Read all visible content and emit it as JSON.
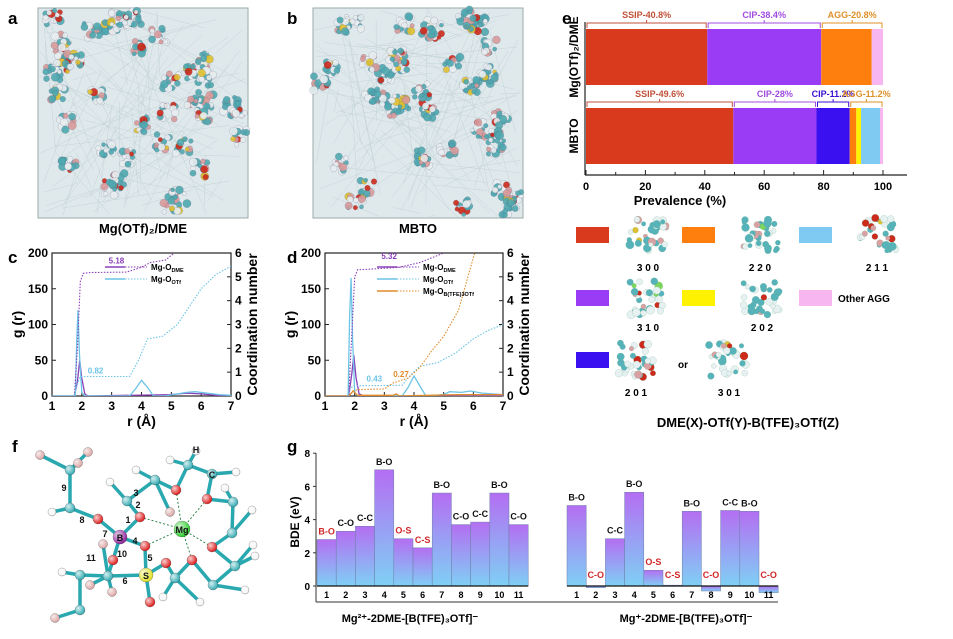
{
  "panels": {
    "a": {
      "label": "a",
      "caption": "Mg(OTf)₂/DME"
    },
    "b": {
      "label": "b",
      "caption": "MBTO"
    },
    "c": {
      "label": "c"
    },
    "d": {
      "label": "d"
    },
    "e": {
      "label": "e"
    },
    "f": {
      "label": "f"
    },
    "g": {
      "label": "g"
    }
  },
  "colors": {
    "ssip_300": "#d93a1e",
    "cip_310": "#9a3cf5",
    "cip_201_301": "#3a0ff0",
    "agg_220": "#ff7f0e",
    "agg_202": "#fff200",
    "agg_211": "#7fcaf2",
    "other_agg": "#f7b6f0",
    "dme": "#8a40b8",
    "otf": "#6cc4e6",
    "btfe": "#e08a2a",
    "bde_top": "#b46ef2",
    "bde_bottom": "#7fd0f5",
    "red_label": "#d02828"
  },
  "chart_data": [
    {
      "id": "c",
      "type": "line",
      "xlabel": "r (Å)",
      "ylabel": "g (r)",
      "y2label": "Coordination number",
      "xlim": [
        1,
        7
      ],
      "ylim": [
        0,
        200
      ],
      "y2lim": [
        0,
        6
      ],
      "xticks": [
        1,
        2,
        3,
        4,
        5,
        6,
        7
      ],
      "yticks": [
        0,
        50,
        100,
        150,
        200
      ],
      "y2ticks": [
        0,
        1,
        2,
        3,
        4,
        5,
        6
      ],
      "legend": [
        {
          "name": "Mg-O",
          "sub": "DME",
          "color_key": "dme"
        },
        {
          "name": "Mg-O",
          "sub": "OTf",
          "color_key": "otf"
        }
      ],
      "annotations": [
        {
          "text": "5.18",
          "color_key": "dme"
        },
        {
          "text": "0.82",
          "color_key": "otf"
        }
      ],
      "series": [
        {
          "name": "Mg-O_DME g(r)",
          "axis": "left",
          "color_key": "dme",
          "points": [
            [
              1,
              0
            ],
            [
              1.75,
              0
            ],
            [
              1.85,
              20
            ],
            [
              1.93,
              50
            ],
            [
              2.0,
              25
            ],
            [
              2.1,
              3
            ],
            [
              2.2,
              0
            ],
            [
              5,
              2
            ],
            [
              5.5,
              4
            ],
            [
              6,
              3
            ],
            [
              6.5,
              1
            ],
            [
              7,
              0
            ]
          ]
        },
        {
          "name": "Mg-O_OTf g(r)",
          "axis": "left",
          "color_key": "otf",
          "points": [
            [
              1,
              0
            ],
            [
              1.78,
              0
            ],
            [
              1.83,
              80
            ],
            [
              1.87,
              120
            ],
            [
              1.92,
              60
            ],
            [
              2.0,
              5
            ],
            [
              2.1,
              0
            ],
            [
              3.6,
              0
            ],
            [
              3.8,
              10
            ],
            [
              4.0,
              22
            ],
            [
              4.2,
              12
            ],
            [
              4.4,
              0
            ],
            [
              4.8,
              0
            ],
            [
              5.2,
              3
            ],
            [
              5.5,
              5
            ],
            [
              5.8,
              6
            ],
            [
              6.2,
              4
            ],
            [
              6.6,
              2
            ],
            [
              7,
              1
            ]
          ]
        },
        {
          "name": "Mg-O_DME CN",
          "axis": "right",
          "dashed": true,
          "color_key": "dme",
          "points": [
            [
              1.75,
              0
            ],
            [
              1.85,
              2
            ],
            [
              1.95,
              4.8
            ],
            [
              2.05,
              5.15
            ],
            [
              2.3,
              5.18
            ],
            [
              3.5,
              5.2
            ],
            [
              4,
              5.4
            ],
            [
              4.3,
              5.6
            ],
            [
              4.8,
              5.7
            ],
            [
              5.1,
              6.0
            ]
          ]
        },
        {
          "name": "Mg-O_OTf CN",
          "axis": "right",
          "dashed": true,
          "color_key": "otf",
          "points": [
            [
              1.75,
              0
            ],
            [
              1.85,
              0.5
            ],
            [
              1.95,
              0.82
            ],
            [
              3.6,
              0.82
            ],
            [
              3.9,
              1.5
            ],
            [
              4.2,
              2.4
            ],
            [
              4.7,
              2.5
            ],
            [
              5.2,
              3.0
            ],
            [
              6.0,
              4.5
            ],
            [
              6.5,
              5.1
            ],
            [
              7,
              5.45
            ]
          ]
        }
      ]
    },
    {
      "id": "d",
      "type": "line",
      "xlabel": "r (Å)",
      "ylabel": "g (r)",
      "y2label": "Coordination number",
      "xlim": [
        1,
        7
      ],
      "ylim": [
        0,
        200
      ],
      "y2lim": [
        0,
        6
      ],
      "xticks": [
        1,
        2,
        3,
        4,
        5,
        6,
        7
      ],
      "yticks": [
        0,
        50,
        100,
        150,
        200
      ],
      "y2ticks": [
        0,
        1,
        2,
        3,
        4,
        5,
        6
      ],
      "legend": [
        {
          "name": "Mg-O",
          "sub": "DME",
          "color_key": "dme"
        },
        {
          "name": "Mg-O",
          "sub": "OTf",
          "color_key": "otf"
        },
        {
          "name": "Mg-O",
          "sub": "B(TFE)3OTf",
          "color_key": "btfe"
        }
      ],
      "annotations": [
        {
          "text": "5.32",
          "color_key": "dme"
        },
        {
          "text": "0.43",
          "color_key": "otf"
        },
        {
          "text": "0.27",
          "color_key": "btfe"
        }
      ],
      "series": [
        {
          "name": "Mg-O_DME g(r)",
          "axis": "left",
          "color_key": "dme",
          "points": [
            [
              1,
              0
            ],
            [
              1.8,
              0
            ],
            [
              1.9,
              30
            ],
            [
              1.97,
              57
            ],
            [
              2.05,
              25
            ],
            [
              2.15,
              3
            ],
            [
              2.3,
              0
            ],
            [
              7,
              0
            ]
          ]
        },
        {
          "name": "Mg-O_OTf g(r)",
          "axis": "left",
          "color_key": "otf",
          "points": [
            [
              1,
              0
            ],
            [
              1.78,
              0
            ],
            [
              1.83,
              110
            ],
            [
              1.88,
              165
            ],
            [
              1.93,
              80
            ],
            [
              2.0,
              5
            ],
            [
              2.1,
              0
            ],
            [
              3.6,
              0
            ],
            [
              3.8,
              12
            ],
            [
              4.0,
              28
            ],
            [
              4.2,
              14
            ],
            [
              4.4,
              0
            ],
            [
              5.0,
              2
            ],
            [
              5.2,
              6
            ],
            [
              5.6,
              5
            ],
            [
              5.9,
              7
            ],
            [
              6.3,
              4
            ],
            [
              7,
              2
            ]
          ]
        },
        {
          "name": "Mg-O_B(TFE)3OTf g(r)",
          "axis": "left",
          "color_key": "btfe",
          "points": [
            [
              1,
              0
            ],
            [
              1.8,
              0
            ],
            [
              1.95,
              7
            ],
            [
              2.1,
              1
            ],
            [
              3.3,
              1
            ],
            [
              3.4,
              3
            ],
            [
              3.5,
              0
            ],
            [
              4.5,
              1
            ],
            [
              5.5,
              2
            ],
            [
              7,
              2
            ]
          ]
        },
        {
          "name": "Mg-O_DME CN",
          "axis": "right",
          "dashed": true,
          "color_key": "dme",
          "points": [
            [
              1.8,
              0
            ],
            [
              1.9,
              2.5
            ],
            [
              2.0,
              5.0
            ],
            [
              2.1,
              5.3
            ],
            [
              2.5,
              5.32
            ],
            [
              3.5,
              5.4
            ],
            [
              4.2,
              5.6
            ],
            [
              4.6,
              5.8
            ],
            [
              5.0,
              6.0
            ]
          ]
        },
        {
          "name": "Mg-O_OTf CN",
          "axis": "right",
          "dashed": true,
          "color_key": "otf",
          "points": [
            [
              1.78,
              0
            ],
            [
              1.85,
              0.3
            ],
            [
              1.95,
              0.43
            ],
            [
              3.6,
              0.45
            ],
            [
              3.9,
              0.9
            ],
            [
              4.2,
              1.25
            ],
            [
              4.8,
              1.4
            ],
            [
              5.4,
              1.8
            ],
            [
              6.0,
              2.4
            ],
            [
              6.5,
              2.75
            ],
            [
              7,
              3.0
            ]
          ]
        },
        {
          "name": "Mg-O_B(TFE)3OTf CN",
          "axis": "right",
          "dashed": true,
          "color_key": "btfe",
          "points": [
            [
              1.8,
              0
            ],
            [
              1.95,
              0.2
            ],
            [
              2.1,
              0.27
            ],
            [
              3.0,
              0.3
            ],
            [
              3.3,
              0.55
            ],
            [
              3.8,
              0.75
            ],
            [
              4.2,
              1.2
            ],
            [
              4.6,
              1.9
            ],
            [
              5.0,
              2.5
            ],
            [
              5.5,
              3.6
            ],
            [
              6.0,
              5.8
            ],
            [
              6.05,
              6.0
            ]
          ]
        }
      ]
    },
    {
      "id": "e",
      "type": "bar",
      "orientation": "horizontal",
      "stacked": true,
      "xlabel": "Prevalence (%)",
      "xlim": [
        0,
        100
      ],
      "xticks": [
        0,
        20,
        40,
        60,
        80,
        100
      ],
      "categories": [
        "Mg(OTf)₂/DME",
        "MBTO"
      ],
      "series": [
        {
          "name": "300",
          "color_key": "ssip_300",
          "values": [
            40.8,
            49.6
          ]
        },
        {
          "name": "310",
          "color_key": "cip_310",
          "values": [
            38.4,
            28.0
          ]
        },
        {
          "name": "201 or 301",
          "color_key": "cip_201_301",
          "values": [
            0,
            11.2
          ]
        },
        {
          "name": "220",
          "color_key": "agg_220",
          "values": [
            17.0,
            2.2
          ]
        },
        {
          "name": "202",
          "color_key": "agg_202",
          "values": [
            0,
            1.6
          ]
        },
        {
          "name": "211",
          "color_key": "agg_211",
          "values": [
            0,
            6.4
          ]
        },
        {
          "name": "Other AGG",
          "color_key": "other_agg",
          "values": [
            3.8,
            1.0
          ]
        }
      ],
      "brackets": [
        [
          {
            "text": "SSIP-40.8%",
            "from": 0,
            "to": 40.8,
            "color": "#c0503a"
          },
          {
            "text": "CIP-38.4%",
            "from": 40.8,
            "to": 79.2,
            "color": "#a04ce0"
          },
          {
            "text": "AGG-20.8%",
            "from": 79.2,
            "to": 100,
            "color": "#e0902a"
          }
        ],
        [
          {
            "text": "SSIP-49.6%",
            "from": 0,
            "to": 49.6,
            "color": "#c0503a"
          },
          {
            "text": "CIP-28%",
            "from": 49.6,
            "to": 77.6,
            "color": "#a04ce0"
          },
          {
            "text": "CIP-11.2%",
            "from": 77.6,
            "to": 88.8,
            "color": "#3a0fd0"
          },
          {
            "text": "AGG-11.2%",
            "from": 88.8,
            "to": 100,
            "color": "#e0902a"
          }
        ]
      ],
      "legend": {
        "items": [
          {
            "code": "3 0 0",
            "color_key": "ssip_300"
          },
          {
            "code": "2 2 0",
            "color_key": "agg_220"
          },
          {
            "code": "2 1 1",
            "color_key": "agg_211"
          },
          {
            "code": "3 1 0",
            "color_key": "cip_310"
          },
          {
            "code": "2 0 2",
            "color_key": "agg_202"
          },
          {
            "code": "Other AGG",
            "color_key": "other_agg"
          },
          {
            "code": "2 0 1",
            "color_key": "cip_201_301"
          }
        ],
        "or_text": "or",
        "alt_code": "3 0 1",
        "caption": "DME(X)-OTf(Y)-B(TFE)₃OTf(Z)"
      }
    },
    {
      "id": "g",
      "type": "bar",
      "ylabel": "BDE (eV)",
      "ylim": [
        -0.5,
        8
      ],
      "yticks": [
        0,
        2,
        4,
        6,
        8
      ],
      "groups": [
        {
          "name": "Mg²⁺-2DME-[B(TFE)₃OTf]⁻",
          "categories": [
            "1",
            "2",
            "3",
            "4",
            "5",
            "6",
            "7",
            "8",
            "9",
            "10",
            "11"
          ],
          "values": [
            2.8,
            3.3,
            3.6,
            7.0,
            2.85,
            2.3,
            5.6,
            3.7,
            3.85,
            5.6,
            3.7
          ],
          "bonds": [
            "B-O",
            "C-O",
            "C-C",
            "B-O",
            "O-S",
            "C-S",
            "B-O",
            "C-O",
            "C-C",
            "B-O",
            "C-O"
          ],
          "bond_red": [
            true,
            false,
            false,
            false,
            true,
            true,
            false,
            false,
            false,
            false,
            false
          ]
        },
        {
          "name": "Mg⁺-2DME-[B(TFE)₃OTf]⁻",
          "categories": [
            "1",
            "2",
            "3",
            "4",
            "5",
            "6",
            "7",
            "8",
            "9",
            "10",
            "11"
          ],
          "values": [
            4.85,
            -0.1,
            2.85,
            5.65,
            0.95,
            0.05,
            4.5,
            -0.3,
            4.55,
            4.5,
            -0.4
          ],
          "bonds": [
            "B-O",
            "C-O",
            "C-C",
            "B-O",
            "O-S",
            "C-S",
            "B-O",
            "C-O",
            "C-C",
            "B-O",
            "C-O"
          ],
          "bond_red": [
            false,
            true,
            false,
            false,
            true,
            true,
            false,
            true,
            false,
            false,
            true
          ]
        }
      ]
    }
  ],
  "molecule": {
    "atom_labels": {
      "H": "H",
      "C": "C",
      "B": "B",
      "S": "S",
      "Mg": "Mg"
    },
    "bond_numbers": [
      "1",
      "2",
      "3",
      "4",
      "5",
      "6",
      "7",
      "8",
      "9",
      "10",
      "11"
    ]
  }
}
